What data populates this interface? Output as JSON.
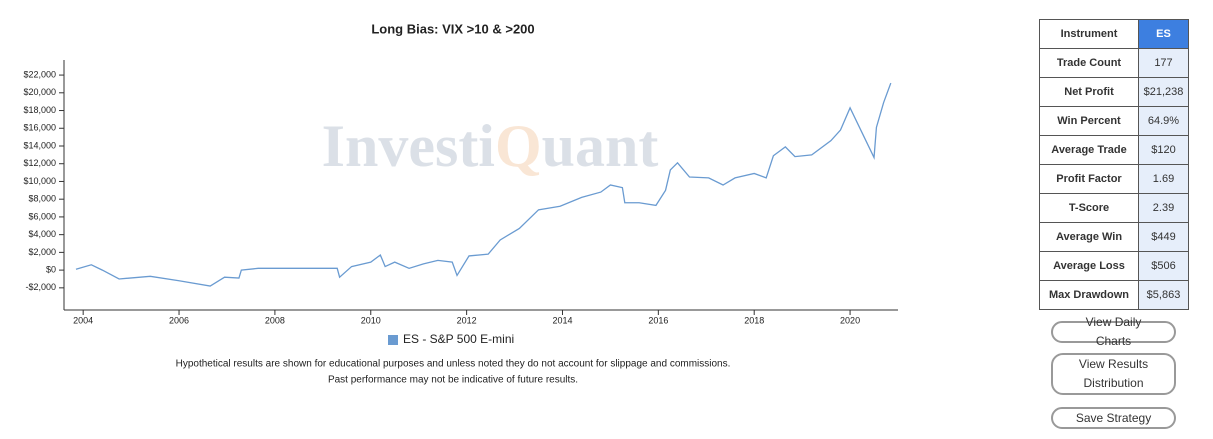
{
  "chart_data": {
    "type": "line",
    "title": "Long Bias: VIX >10 & >200",
    "x": [
      2003.85,
      2004.17,
      2004.4,
      2004.75,
      2005.4,
      2006.0,
      2006.65,
      2006.95,
      2007.25,
      2007.3,
      2007.65,
      2008.5,
      2009.3,
      2009.35,
      2009.6,
      2010.0,
      2010.2,
      2010.3,
      2010.5,
      2010.8,
      2011.1,
      2011.4,
      2011.7,
      2011.8,
      2012.05,
      2012.45,
      2012.7,
      2013.1,
      2013.5,
      2013.95,
      2014.4,
      2014.8,
      2015.0,
      2015.25,
      2015.3,
      2015.6,
      2015.95,
      2016.15,
      2016.25,
      2016.4,
      2016.65,
      2017.05,
      2017.35,
      2017.6,
      2018.0,
      2018.25,
      2018.4,
      2018.65,
      2018.85,
      2019.2,
      2019.6,
      2019.8,
      2020.0,
      2020.25,
      2020.5,
      2020.55,
      2020.7,
      2020.85
    ],
    "series": [
      {
        "name": "ES - S&P 500 E-mini",
        "color": "#6a9bd1",
        "values": [
          100,
          600,
          0,
          -1000,
          -700,
          -1200,
          -1800,
          -800,
          -900,
          0,
          200,
          200,
          200,
          -800,
          400,
          900,
          1700,
          400,
          900,
          200,
          700,
          1100,
          900,
          -600,
          1600,
          1800,
          3400,
          4700,
          6800,
          7200,
          8200,
          8800,
          9600,
          9300,
          7600,
          7600,
          7300,
          9000,
          11300,
          12100,
          10500,
          10400,
          9600,
          10400,
          10900,
          10400,
          12900,
          13900,
          12800,
          13000,
          14600,
          15800,
          18300,
          15500,
          12700,
          16100,
          18900,
          21100
        ]
      }
    ],
    "xlim": [
      2003.6,
      2021.0
    ],
    "xticks": [
      2004,
      2006,
      2008,
      2010,
      2012,
      2014,
      2016,
      2018,
      2020
    ],
    "ylim": [
      -4500,
      23700
    ],
    "yticks": [
      {
        "value": -2000,
        "label": "-$2,000"
      },
      {
        "value": 0,
        "label": "$0"
      },
      {
        "value": 2000,
        "label": "$2,000"
      },
      {
        "value": 4000,
        "label": "$4,000"
      },
      {
        "value": 6000,
        "label": "$6,000"
      },
      {
        "value": 8000,
        "label": "$8,000"
      },
      {
        "value": 10000,
        "label": "$10,000"
      },
      {
        "value": 12000,
        "label": "$12,000"
      },
      {
        "value": 14000,
        "label": "$14,000"
      },
      {
        "value": 16000,
        "label": "$16,000"
      },
      {
        "value": 18000,
        "label": "$18,000"
      },
      {
        "value": 20000,
        "label": "$20,000"
      },
      {
        "value": 22000,
        "label": "$22,000"
      }
    ],
    "grid": false,
    "legend": "bottom"
  },
  "watermark": [
    "Investi",
    "Q",
    "uant"
  ],
  "disclaimer": [
    "Hypothetical results are shown for educational purposes and unless noted they do not account for slippage and commissions.",
    "Past performance may not be indicative of future results."
  ],
  "stats": [
    [
      "Instrument",
      "ES"
    ],
    [
      "Trade Count",
      "177"
    ],
    [
      "Net Profit",
      "$21,238"
    ],
    [
      "Win Percent",
      "64.9%"
    ],
    [
      "Average Trade",
      "$120"
    ],
    [
      "Profit Factor",
      "1.69"
    ],
    [
      "T-Score",
      "2.39"
    ],
    [
      "Average Win",
      "$449"
    ],
    [
      "Average Loss",
      "$506"
    ],
    [
      "Max Drawdown",
      "$5,863"
    ]
  ],
  "buttons": [
    "View Daily Charts",
    "View Results Distribution",
    "Save Strategy"
  ]
}
